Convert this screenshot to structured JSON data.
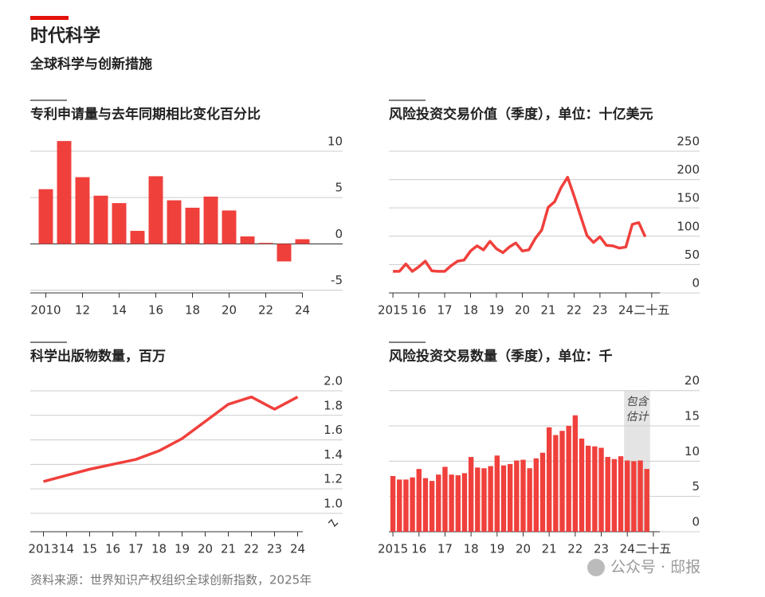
{
  "header": {
    "title": "时代科学",
    "subtitle": "全球科学与创新措施"
  },
  "chart_data": [
    {
      "type": "bar",
      "title": "专利申请量与去年同期相比变化百分比",
      "categories": [
        "2010",
        null,
        "12",
        null,
        "14",
        null,
        "16",
        null,
        "18",
        null,
        "20",
        null,
        "22",
        null,
        "24"
      ],
      "values": [
        5.9,
        11.1,
        7.2,
        5.2,
        4.4,
        1.4,
        7.3,
        4.7,
        3.9,
        5.1,
        3.6,
        0.8,
        0.1,
        -1.9,
        0.5
      ],
      "color": "#f0403c",
      "ylim": [
        -5.3,
        11.2
      ],
      "yticks": [
        10,
        5,
        0,
        -5
      ],
      "grid": true
    },
    {
      "type": "line",
      "title": "风险投资交易价值（季度），单位：十亿美元",
      "categories": [
        "2015",
        null,
        null,
        null,
        "16",
        null,
        null,
        null,
        "17",
        null,
        null,
        null,
        "18",
        null,
        null,
        null,
        "19",
        null,
        null,
        null,
        "20",
        null,
        null,
        null,
        "21",
        null,
        null,
        null,
        "22",
        null,
        null,
        null,
        "23",
        null,
        null,
        null,
        "24",
        null,
        null,
        null,
        "二十五"
      ],
      "values": [
        38,
        38,
        51,
        38,
        46,
        56,
        39,
        38,
        38,
        48,
        56,
        58,
        74,
        83,
        76,
        91,
        78,
        71,
        81,
        88,
        74,
        76,
        96,
        111,
        151,
        161,
        186,
        204,
        171,
        136,
        101,
        89,
        99,
        84,
        83,
        79,
        81,
        121,
        124,
        99,
        null
      ],
      "color": "#f0403c",
      "ylim": [
        0,
        264
      ],
      "yticks": [
        250,
        200,
        150,
        100,
        50,
        0
      ],
      "grid": true
    },
    {
      "type": "line",
      "title": "科学出版物数量，百万",
      "categories": [
        "2013",
        "14",
        "15",
        "16",
        "17",
        "18",
        "19",
        "20",
        "21",
        "22",
        "23",
        "24"
      ],
      "values": [
        1.26,
        1.31,
        1.36,
        1.4,
        1.44,
        1.51,
        1.61,
        1.75,
        1.89,
        1.95,
        1.85,
        1.95
      ],
      "color": "#f0403c",
      "ylim": [
        0.85,
        2.065
      ],
      "yticks": [
        {
          "value": 2.0,
          "label": "2.0"
        },
        1.8,
        1.6,
        1.4,
        1.2,
        {
          "value": 1.0,
          "label": "1.0"
        }
      ],
      "grid": true
    },
    {
      "type": "bar",
      "title": "风险投资交易数量（季度），单位：千",
      "categories": [
        "2015",
        null,
        null,
        null,
        "16",
        null,
        null,
        null,
        "17",
        null,
        null,
        null,
        "18",
        null,
        null,
        null,
        "19",
        null,
        null,
        null,
        "20",
        null,
        null,
        null,
        "21",
        null,
        null,
        null,
        "22",
        null,
        null,
        null,
        "23",
        null,
        null,
        null,
        "24",
        null,
        null,
        null,
        "二十五"
      ],
      "values": [
        7.9,
        7.4,
        7.4,
        7.7,
        8.9,
        7.6,
        7.2,
        8.1,
        9.2,
        8.1,
        8.0,
        8.3,
        10.6,
        9.1,
        9.0,
        9.3,
        10.8,
        9.4,
        9.6,
        10.1,
        10.2,
        9.0,
        10.4,
        11.2,
        14.8,
        13.7,
        14.3,
        15.0,
        16.5,
        13.2,
        12.2,
        12.1,
        11.9,
        10.6,
        10.3,
        10.7,
        10.1,
        10.0,
        10.1,
        8.9,
        null
      ],
      "color": "#f0403c",
      "ylim": [
        0,
        21.1
      ],
      "yticks": [
        20,
        15,
        10,
        5,
        0
      ],
      "grid": true,
      "shaded_range": [
        36,
        39
      ],
      "annotation": [
        "包含",
        "估计"
      ]
    }
  ],
  "footer": {
    "source": "资料来源：世界知识产权组织全球创新指数，2025年",
    "watermark": "公众号 · 邸报"
  }
}
